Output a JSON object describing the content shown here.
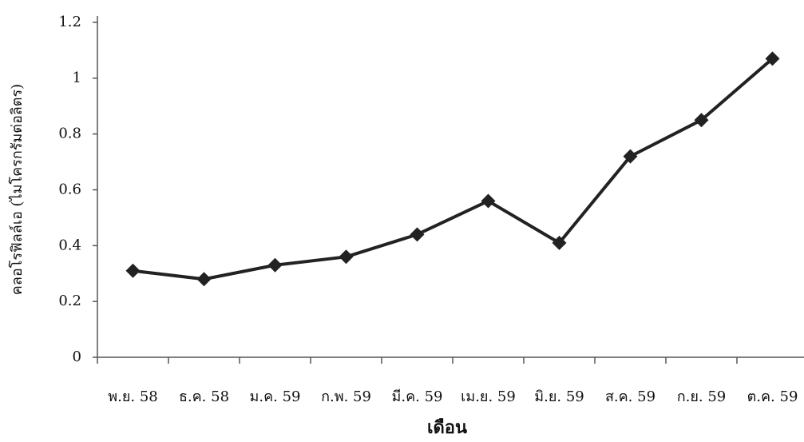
{
  "chart_data": {
    "type": "line",
    "x_label": "เดือน",
    "y_label": "คลอโรฟิลล์เอ (ไมโครกรัมต่อลิตร)",
    "categories": [
      "พ.ย. 58",
      "ธ.ค. 58",
      "ม.ค. 59",
      "ก.พ. 59",
      "มี.ค. 59",
      "เม.ย. 59",
      "มิ.ย. 59",
      "ส.ค. 59",
      "ก.ย. 59",
      "ต.ค. 59"
    ],
    "series": [
      {
        "color": "#222222",
        "values": [
          0.31,
          0.28,
          0.33,
          0.36,
          0.44,
          0.56,
          0.41,
          0.72,
          0.85,
          1.07
        ]
      }
    ],
    "ylim": [
      0,
      1.2
    ],
    "yticks": [
      0,
      0.2,
      0.4,
      0.6,
      0.8,
      1,
      1.2
    ],
    "grid": false
  }
}
